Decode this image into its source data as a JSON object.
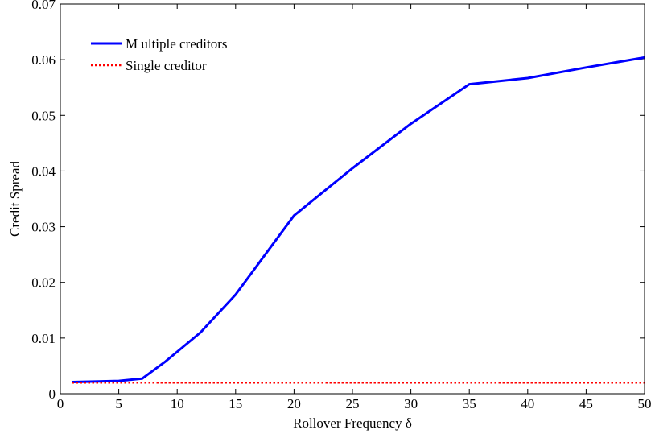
{
  "chart_data": {
    "type": "line",
    "title": "",
    "xlabel": "Rollover Frequency  δ",
    "ylabel": "Credit Spread",
    "xlim": [
      0,
      50
    ],
    "ylim": [
      0,
      0.07
    ],
    "xticks": [
      0,
      5,
      10,
      15,
      20,
      25,
      30,
      35,
      40,
      45,
      50
    ],
    "yticks": [
      0,
      0.01,
      0.02,
      0.03,
      0.04,
      0.05,
      0.06,
      0.07
    ],
    "xtick_labels": [
      "0",
      "5",
      "10",
      "15",
      "20",
      "25",
      "30",
      "35",
      "40",
      "45",
      "50"
    ],
    "ytick_labels": [
      "0",
      "0.01",
      "0.02",
      "0.03",
      "0.04",
      "0.05",
      "0.06",
      "0.07"
    ],
    "grid": false,
    "legend_position": "top-left",
    "series": [
      {
        "name": "M ultiple creditors",
        "color": "#0000ff",
        "style": "solid",
        "x": [
          1,
          5,
          7,
          9,
          12,
          15,
          20,
          25,
          30,
          35,
          40,
          45,
          50
        ],
        "y": [
          0.0021,
          0.0023,
          0.0027,
          0.0058,
          0.011,
          0.0178,
          0.032,
          0.0405,
          0.0485,
          0.0556,
          0.0567,
          0.0586,
          0.0604
        ]
      },
      {
        "name": "Single creditor",
        "color": "#ff0000",
        "style": "dotted",
        "x": [
          1,
          50
        ],
        "y": [
          0.002,
          0.002
        ]
      }
    ]
  }
}
